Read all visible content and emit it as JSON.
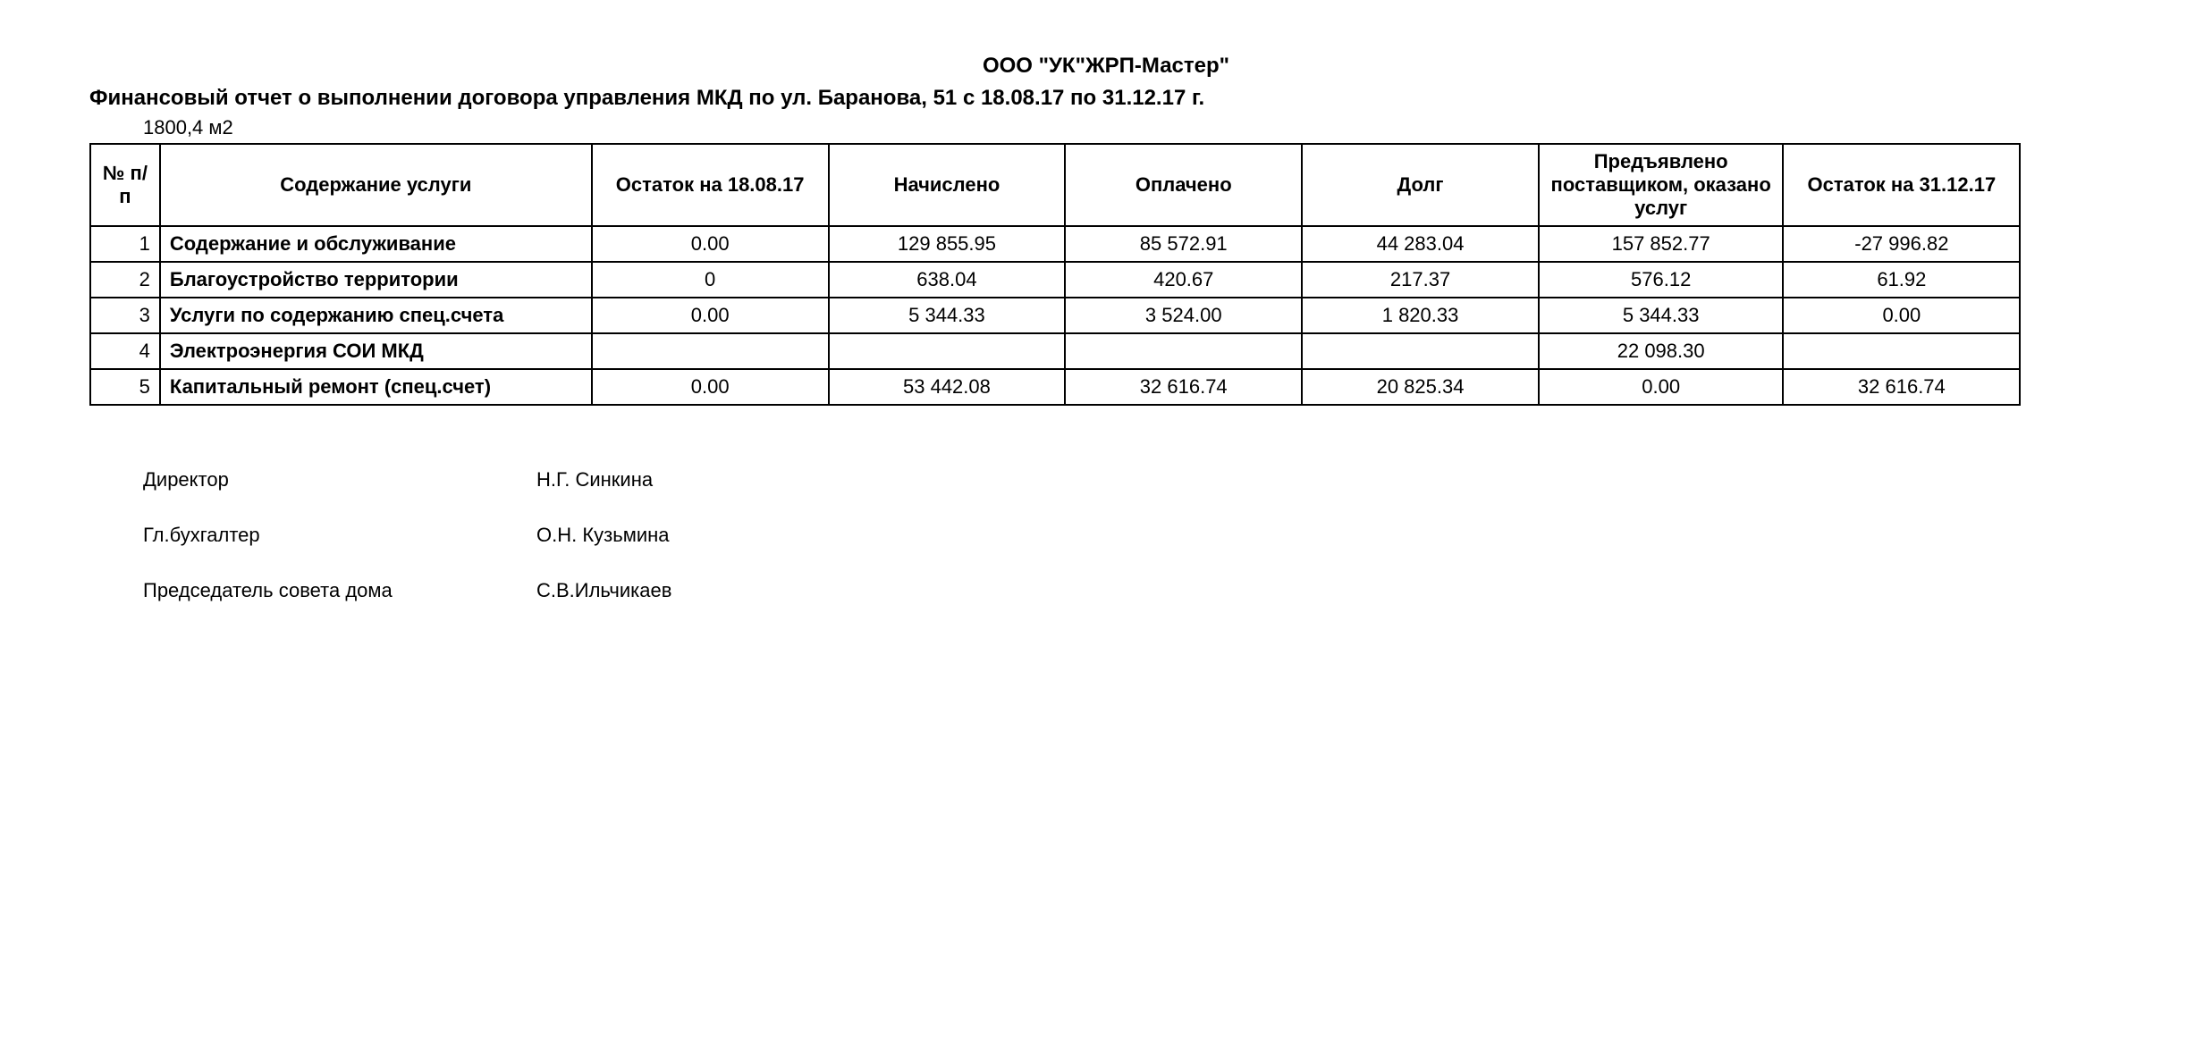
{
  "header": {
    "company": "ООО \"УК\"ЖРП-Мастер\"",
    "title": "Финансовый отчет о выполнении договора управления МКД  по ул. Баранова, 51 с 18.08.17 по 31.12.17 г.",
    "area": "1800,4 м2"
  },
  "table": {
    "columns": [
      "№ п/п",
      "Содержание услуги",
      "Остаток на 18.08.17",
      "Начислено",
      "Оплачено",
      "Долг",
      "Предъявлено поставщиком, оказано услуг",
      "Остаток на 31.12.17"
    ],
    "rows": [
      {
        "idx": "1",
        "service": "Содержание и обслуживание",
        "opening": "0.00",
        "accrued": "129 855.95",
        "paid": "85 572.91",
        "debt": "44 283.04",
        "supplied": "157 852.77",
        "closing": "-27 996.82"
      },
      {
        "idx": "2",
        "service": "Благоустройство территории",
        "opening": "0",
        "accrued": "638.04",
        "paid": "420.67",
        "debt": "217.37",
        "supplied": "576.12",
        "closing": "61.92"
      },
      {
        "idx": "3",
        "service": "Услуги по содержанию спец.счета",
        "opening": "0.00",
        "accrued": "5 344.33",
        "paid": "3 524.00",
        "debt": "1 820.33",
        "supplied": "5 344.33",
        "closing": "0.00"
      },
      {
        "idx": "4",
        "service": "Электроэнергия СОИ МКД",
        "opening": "",
        "accrued": "",
        "paid": "",
        "debt": "",
        "supplied": "22 098.30",
        "closing": ""
      },
      {
        "idx": "5",
        "service": "Капитальный ремонт (спец.счет)",
        "opening": "0.00",
        "accrued": "53 442.08",
        "paid": "32 616.74",
        "debt": "20 825.34",
        "supplied": "0.00",
        "closing": "32 616.74"
      }
    ]
  },
  "signatures": [
    {
      "role": "Директор",
      "name": "Н.Г. Синкина"
    },
    {
      "role": "Гл.бухгалтер",
      "name": "О.Н. Кузьмина"
    },
    {
      "role": "Председатель совета дома",
      "name": "С.В.Ильчикаев"
    }
  ],
  "style": {
    "font_family": "Arial",
    "text_color": "#000000",
    "background_color": "#ffffff",
    "border_color": "#000000",
    "title_fontsize_pt": 18,
    "body_fontsize_pt": 16
  }
}
